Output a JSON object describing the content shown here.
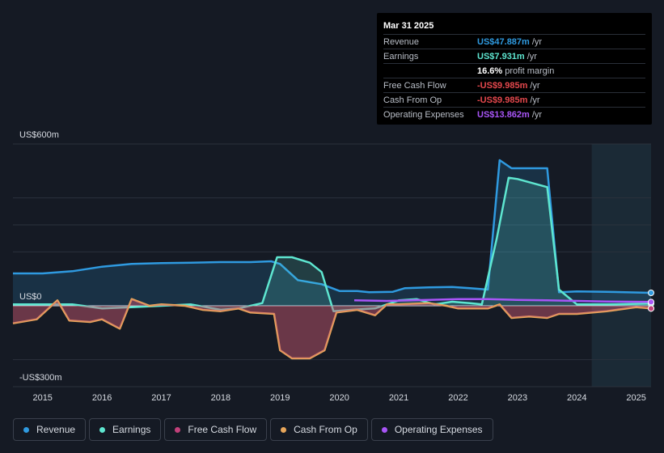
{
  "tooltip": {
    "date": "Mar 31 2025",
    "rows": [
      {
        "label": "Revenue",
        "value": "US$47.887m",
        "unit": "/yr",
        "color": "#2f9ae0"
      },
      {
        "label": "Earnings",
        "value": "US$7.931m",
        "unit": "/yr",
        "color": "#5ee6d0"
      },
      {
        "label": "",
        "value": "16.6%",
        "unit": "profit margin",
        "color": "#ffffff"
      },
      {
        "label": "Free Cash Flow",
        "value": "-US$9.985m",
        "unit": "/yr",
        "color": "#e5484d"
      },
      {
        "label": "Cash From Op",
        "value": "-US$9.985m",
        "unit": "/yr",
        "color": "#e5484d"
      },
      {
        "label": "Operating Expenses",
        "value": "US$13.862m",
        "unit": "/yr",
        "color": "#a855f7"
      }
    ]
  },
  "legend": [
    {
      "label": "Revenue",
      "color": "#2f9ae0"
    },
    {
      "label": "Earnings",
      "color": "#5ee6d0"
    },
    {
      "label": "Free Cash Flow",
      "color": "#c2407a"
    },
    {
      "label": "Cash From Op",
      "color": "#e8a65a"
    },
    {
      "label": "Operating Expenses",
      "color": "#a855f7"
    }
  ],
  "chart_data": {
    "type": "area",
    "y_unit": "US$ millions",
    "ylim": [
      -300,
      600
    ],
    "xlim": [
      2014.5,
      2025.25
    ],
    "y_tick_labels": [
      {
        "value": 600,
        "label": "US$600m"
      },
      {
        "value": 0,
        "label": "US$0"
      },
      {
        "value": -300,
        "label": "-US$300m"
      }
    ],
    "x_tick_labels": [
      "2015",
      "2016",
      "2017",
      "2018",
      "2019",
      "2020",
      "2021",
      "2022",
      "2023",
      "2024",
      "2025"
    ],
    "gridlines": [
      600,
      400,
      300,
      200,
      0,
      -200
    ],
    "forecast_start": 2024.25,
    "series": [
      {
        "name": "Revenue",
        "color": "#2f9ae0",
        "fill": true,
        "points": [
          [
            2014.5,
            120
          ],
          [
            2015,
            120
          ],
          [
            2015.5,
            128
          ],
          [
            2016,
            145
          ],
          [
            2016.5,
            155
          ],
          [
            2017,
            158
          ],
          [
            2017.5,
            160
          ],
          [
            2018,
            162
          ],
          [
            2018.5,
            162
          ],
          [
            2018.85,
            165
          ],
          [
            2019.0,
            155
          ],
          [
            2019.3,
            95
          ],
          [
            2019.7,
            80
          ],
          [
            2020.0,
            55
          ],
          [
            2020.3,
            55
          ],
          [
            2020.5,
            50
          ],
          [
            2020.9,
            52
          ],
          [
            2021.1,
            65
          ],
          [
            2021.5,
            68
          ],
          [
            2021.9,
            70
          ],
          [
            2022.2,
            65
          ],
          [
            2022.5,
            60
          ],
          [
            2022.7,
            540
          ],
          [
            2022.9,
            510
          ],
          [
            2023.2,
            510
          ],
          [
            2023.5,
            510
          ],
          [
            2023.7,
            50
          ],
          [
            2024.0,
            53
          ],
          [
            2024.5,
            52
          ],
          [
            2025.25,
            48
          ]
        ]
      },
      {
        "name": "Earnings",
        "color": "#5ee6d0",
        "fill": true,
        "points": [
          [
            2014.5,
            5
          ],
          [
            2015,
            5
          ],
          [
            2015.5,
            5
          ],
          [
            2016,
            -10
          ],
          [
            2016.5,
            -5
          ],
          [
            2017,
            0
          ],
          [
            2017.5,
            5
          ],
          [
            2018,
            -15
          ],
          [
            2018.3,
            -10
          ],
          [
            2018.7,
            10
          ],
          [
            2018.95,
            180
          ],
          [
            2019.2,
            180
          ],
          [
            2019.5,
            160
          ],
          [
            2019.7,
            125
          ],
          [
            2019.9,
            -20
          ],
          [
            2020.2,
            -15
          ],
          [
            2020.6,
            -10
          ],
          [
            2021.0,
            20
          ],
          [
            2021.3,
            25
          ],
          [
            2021.6,
            5
          ],
          [
            2021.9,
            15
          ],
          [
            2022.2,
            10
          ],
          [
            2022.4,
            5
          ],
          [
            2022.65,
            250
          ],
          [
            2022.85,
            475
          ],
          [
            2023.0,
            470
          ],
          [
            2023.5,
            440
          ],
          [
            2023.7,
            60
          ],
          [
            2024.0,
            5
          ],
          [
            2024.5,
            5
          ],
          [
            2025.25,
            8
          ]
        ]
      },
      {
        "name": "Cash From Op",
        "color": "#e8a65a",
        "fill": true,
        "points": [
          [
            2014.5,
            -65
          ],
          [
            2014.9,
            -50
          ],
          [
            2015.1,
            -10
          ],
          [
            2015.25,
            20
          ],
          [
            2015.45,
            -55
          ],
          [
            2015.8,
            -60
          ],
          [
            2016.0,
            -50
          ],
          [
            2016.3,
            -85
          ],
          [
            2016.5,
            25
          ],
          [
            2016.8,
            0
          ],
          [
            2017.0,
            5
          ],
          [
            2017.4,
            0
          ],
          [
            2017.7,
            -15
          ],
          [
            2018.0,
            -20
          ],
          [
            2018.3,
            -10
          ],
          [
            2018.5,
            -25
          ],
          [
            2018.9,
            -30
          ],
          [
            2019.0,
            -165
          ],
          [
            2019.2,
            -195
          ],
          [
            2019.5,
            -195
          ],
          [
            2019.75,
            -165
          ],
          [
            2019.95,
            -25
          ],
          [
            2020.3,
            -15
          ],
          [
            2020.6,
            -35
          ],
          [
            2020.8,
            5
          ],
          [
            2021.0,
            5
          ],
          [
            2021.5,
            10
          ],
          [
            2021.8,
            0
          ],
          [
            2022.0,
            -10
          ],
          [
            2022.5,
            -10
          ],
          [
            2022.7,
            5
          ],
          [
            2022.9,
            -45
          ],
          [
            2023.2,
            -40
          ],
          [
            2023.5,
            -45
          ],
          [
            2023.7,
            -30
          ],
          [
            2024.0,
            -30
          ],
          [
            2024.5,
            -20
          ],
          [
            2025.0,
            -5
          ],
          [
            2025.25,
            -10
          ]
        ]
      },
      {
        "name": "Free Cash Flow",
        "color": "#c2407a",
        "fill": true,
        "points": [
          [
            2014.5,
            -65
          ],
          [
            2014.9,
            -50
          ],
          [
            2015.1,
            -10
          ],
          [
            2015.25,
            20
          ],
          [
            2015.45,
            -55
          ],
          [
            2015.8,
            -60
          ],
          [
            2016.0,
            -50
          ],
          [
            2016.3,
            -85
          ],
          [
            2016.5,
            25
          ],
          [
            2016.8,
            0
          ],
          [
            2017.0,
            5
          ],
          [
            2017.4,
            0
          ],
          [
            2017.7,
            -15
          ],
          [
            2018.0,
            -20
          ],
          [
            2018.3,
            -10
          ],
          [
            2018.5,
            -25
          ],
          [
            2018.9,
            -30
          ],
          [
            2019.0,
            -165
          ],
          [
            2019.2,
            -195
          ],
          [
            2019.5,
            -195
          ],
          [
            2019.75,
            -165
          ],
          [
            2019.95,
            -25
          ],
          [
            2020.3,
            -15
          ],
          [
            2020.6,
            -35
          ],
          [
            2020.8,
            5
          ],
          [
            2021.0,
            5
          ],
          [
            2021.5,
            10
          ],
          [
            2021.8,
            0
          ],
          [
            2022.0,
            -10
          ],
          [
            2022.5,
            -10
          ],
          [
            2022.7,
            5
          ],
          [
            2022.9,
            -45
          ],
          [
            2023.2,
            -40
          ],
          [
            2023.5,
            -45
          ],
          [
            2023.7,
            -30
          ],
          [
            2024.0,
            -30
          ],
          [
            2024.5,
            -20
          ],
          [
            2025.0,
            -5
          ],
          [
            2025.25,
            -10
          ]
        ]
      },
      {
        "name": "Operating Expenses",
        "color": "#a855f7",
        "fill": false,
        "points": [
          [
            2020.25,
            20
          ],
          [
            2020.8,
            18
          ],
          [
            2021.5,
            22
          ],
          [
            2022.0,
            25
          ],
          [
            2022.5,
            25
          ],
          [
            2023.0,
            22
          ],
          [
            2023.5,
            20
          ],
          [
            2024.0,
            18
          ],
          [
            2024.5,
            16
          ],
          [
            2025.25,
            14
          ]
        ]
      }
    ]
  }
}
